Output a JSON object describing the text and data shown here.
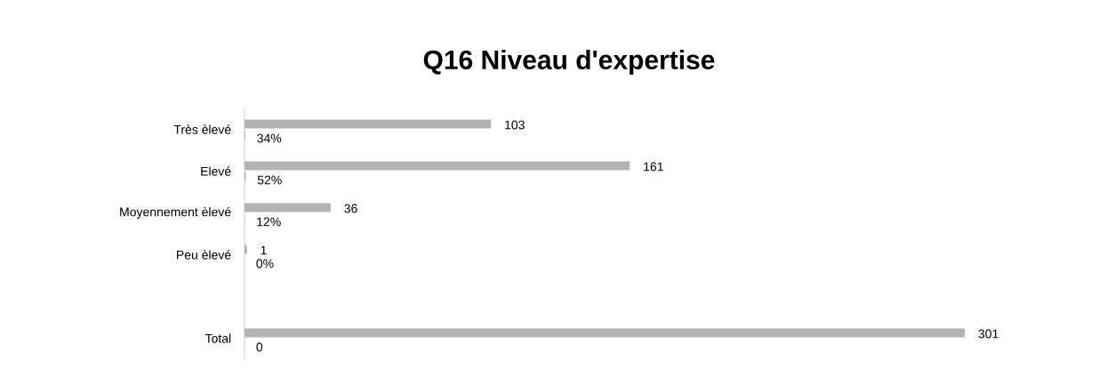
{
  "chart_data": {
    "type": "bar",
    "orientation": "horizontal",
    "title": "Q16 Niveau d'expertise",
    "categories": [
      "Très èlevé",
      "Elevé",
      "Moyennement èlevé",
      "Peu èlevé",
      null,
      "Total"
    ],
    "series": [
      {
        "color": "#b3b3b3",
        "values": [
          103,
          161,
          36,
          1,
          null,
          301
        ],
        "value_labels": [
          "103",
          "161",
          "36",
          "1",
          null,
          "301"
        ]
      },
      {
        "color": "#b3b3b3",
        "values": [
          0.34,
          0.52,
          0.12,
          0,
          null,
          0
        ],
        "value_labels": [
          "34%",
          "52%",
          "12%",
          "0%",
          null,
          "0"
        ]
      }
    ]
  }
}
